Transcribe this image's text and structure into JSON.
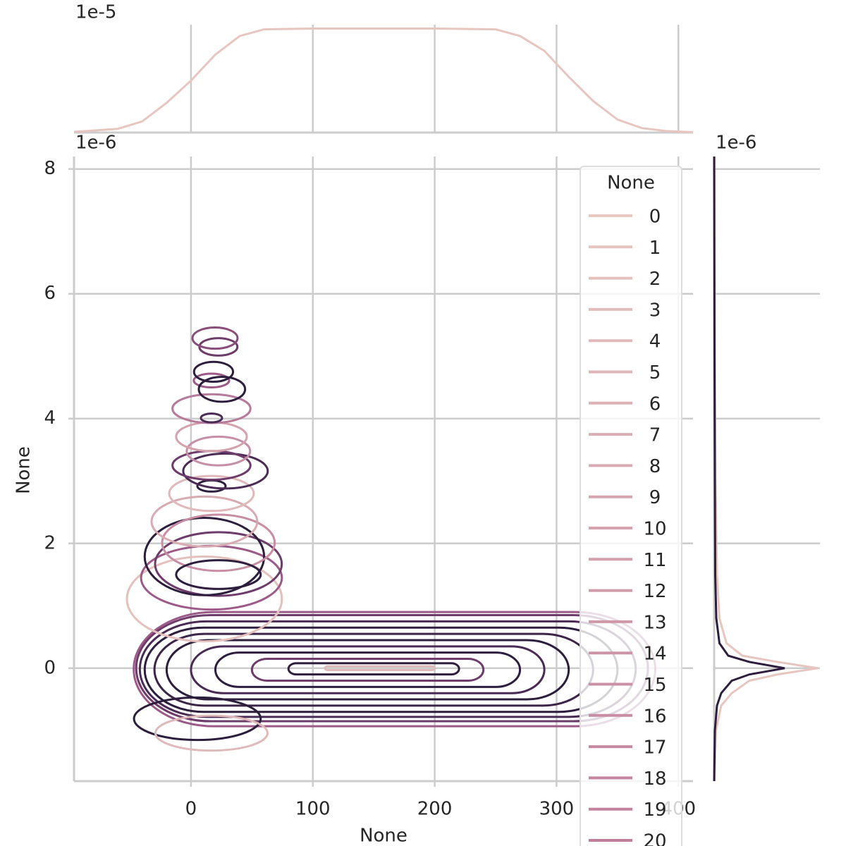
{
  "chart_data": {
    "type": "kde_joint",
    "xlabel": "None",
    "ylabel": "None",
    "xlim": [
      -96,
      412
    ],
    "xticks": [
      0,
      100,
      200,
      300,
      400
    ],
    "ylim": [
      -1.81,
      8.2
    ],
    "yticks": [
      0,
      2,
      4,
      6,
      8
    ],
    "y_offset": "1e-6",
    "grid": true,
    "legend": {
      "title": "None",
      "position": "upper right"
    },
    "series": [
      {
        "name": "0",
        "color": "#e8c8c1"
      },
      {
        "name": "1",
        "color": "#e6c4bf"
      },
      {
        "name": "2",
        "color": "#e4c1bd"
      },
      {
        "name": "3",
        "color": "#e2bdbb"
      },
      {
        "name": "4",
        "color": "#e0b9ba"
      },
      {
        "name": "5",
        "color": "#deb6b8"
      },
      {
        "name": "6",
        "color": "#dcb2b6"
      },
      {
        "name": "7",
        "color": "#daaeb4"
      },
      {
        "name": "8",
        "color": "#d8aab2"
      },
      {
        "name": "9",
        "color": "#d6a7b0"
      },
      {
        "name": "10",
        "color": "#d4a3ae"
      },
      {
        "name": "11",
        "color": "#d39fad"
      },
      {
        "name": "12",
        "color": "#d19cab"
      },
      {
        "name": "13",
        "color": "#cf98a9"
      },
      {
        "name": "14",
        "color": "#cd94a7"
      },
      {
        "name": "15",
        "color": "#cb90a5"
      },
      {
        "name": "16",
        "color": "#c98da3"
      },
      {
        "name": "17",
        "color": "#c789a1"
      },
      {
        "name": "18",
        "color": "#c585a0"
      },
      {
        "name": "19",
        "color": "#c3829e"
      },
      {
        "name": "20",
        "color": "#c17e9c"
      }
    ],
    "bands": [
      {
        "color": "#9c5a88",
        "x0": -47,
        "x1": 381,
        "y0": -0.93,
        "y1": 0.9
      },
      {
        "color": "#6e3c6b",
        "x0": -45,
        "x1": 375,
        "y0": -0.85,
        "y1": 0.85
      },
      {
        "color": "#4a2b55",
        "x0": -42,
        "x1": 365,
        "y0": -0.78,
        "y1": 0.75
      },
      {
        "color": "#2d1e3e",
        "x0": -38,
        "x1": 350,
        "y0": -0.7,
        "y1": 0.65
      },
      {
        "color": "#3d2449",
        "x0": -30,
        "x1": 330,
        "y0": -0.6,
        "y1": 0.55
      },
      {
        "color": "#2d1e3e",
        "x0": -20,
        "x1": 310,
        "y0": -0.5,
        "y1": 0.45
      },
      {
        "color": "#4a2b55",
        "x0": 0,
        "x1": 290,
        "y0": -0.4,
        "y1": 0.35
      },
      {
        "color": "#2d1e3e",
        "x0": 20,
        "x1": 270,
        "y0": -0.3,
        "y1": 0.25
      },
      {
        "color": "#6e3c6b",
        "x0": 50,
        "x1": 240,
        "y0": -0.2,
        "y1": 0.15
      },
      {
        "color": "#2d1e3e",
        "x0": 80,
        "x1": 220,
        "y0": -0.1,
        "y1": 0.08
      },
      {
        "color": "#e0b9ba",
        "x0": 110,
        "x1": 200,
        "y0": -0.03,
        "y1": 0.03
      }
    ],
    "ellipses": [
      {
        "color": "#e4c1bd",
        "cx": 11,
        "cy": 1.11,
        "rx": 63.6,
        "ry": 0.68
      },
      {
        "color": "#9c5a88",
        "cx": 16.8,
        "cy": 1.45,
        "rx": 57.8,
        "ry": 0.51
      },
      {
        "color": "#6e3c6b",
        "cx": 22.5,
        "cy": 1.67,
        "rx": 52,
        "ry": 0.51
      },
      {
        "color": "#2d1e3e",
        "cx": 11,
        "cy": 1.79,
        "rx": 49,
        "ry": 0.62
      },
      {
        "color": "#c98da3",
        "cx": 22.5,
        "cy": 2.01,
        "rx": 46.2,
        "ry": 0.45
      },
      {
        "color": "#2d1e3e",
        "cx": 22.5,
        "cy": 1.5,
        "rx": 34.7,
        "ry": 0.23
      },
      {
        "color": "#d8aab2",
        "cx": 11,
        "cy": 2.35,
        "rx": 43.4,
        "ry": 0.4
      },
      {
        "color": "#e0b9ba",
        "cx": 16.8,
        "cy": 2.8,
        "rx": 34.7,
        "ry": 0.28
      },
      {
        "color": "#2d1e3e",
        "cx": 16.8,
        "cy": 2.92,
        "rx": 11.6,
        "ry": 0.09
      },
      {
        "color": "#4a2b55",
        "cx": 28.3,
        "cy": 3.16,
        "rx": 34.7,
        "ry": 0.28
      },
      {
        "color": "#6e3c6b",
        "cx": 16.8,
        "cy": 3.25,
        "rx": 32,
        "ry": 0.23
      },
      {
        "color": "#c58fa8",
        "cx": 22.5,
        "cy": 3.48,
        "rx": 26,
        "ry": 0.23
      },
      {
        "color": "#d4a3ae",
        "cx": 16.8,
        "cy": 3.71,
        "rx": 29,
        "ry": 0.23
      },
      {
        "color": "#b67a9c",
        "cx": 16.8,
        "cy": 4.16,
        "rx": 32,
        "ry": 0.23
      },
      {
        "color": "#4a2b55",
        "cx": 16.8,
        "cy": 4.01,
        "rx": 8.7,
        "ry": 0.07
      },
      {
        "color": "#9c5a88",
        "cx": 16.8,
        "cy": 4.61,
        "rx": 14.5,
        "ry": 0.11
      },
      {
        "color": "#2d1e3e",
        "cx": 25.4,
        "cy": 4.47,
        "rx": 19,
        "ry": 0.2
      },
      {
        "color": "#2d1e3e",
        "cx": 18.5,
        "cy": 4.75,
        "rx": 16,
        "ry": 0.16
      },
      {
        "color": "#6e3c6b",
        "cx": 22.5,
        "cy": 5.15,
        "rx": 15.6,
        "ry": 0.14
      },
      {
        "color": "#8a4e7b",
        "cx": 19.7,
        "cy": 5.29,
        "rx": 18.5,
        "ry": 0.17
      },
      {
        "color": "#2d1e3e",
        "cx": 5.2,
        "cy": -0.81,
        "rx": 52,
        "ry": 0.34
      },
      {
        "color": "#e0b9ba",
        "cx": 16.8,
        "cy": -1.04,
        "rx": 46,
        "ry": 0.28
      }
    ],
    "marginal_x": {
      "y_offset": "1e-5",
      "ylim": [
        0,
        3
      ],
      "x": [
        -96,
        -60,
        -40,
        -20,
        0,
        20,
        40,
        60,
        100,
        200,
        250,
        270,
        290,
        310,
        330,
        350,
        370,
        390,
        412
      ],
      "series": [
        {
          "color": "#e8c6c0",
          "values": [
            0.02,
            0.1,
            0.3,
            0.8,
            1.4,
            2.1,
            2.6,
            2.78,
            2.8,
            2.8,
            2.78,
            2.6,
            2.2,
            1.5,
            0.85,
            0.35,
            0.12,
            0.04,
            0.01
          ]
        }
      ]
    },
    "marginal_y": {
      "x_offset": "1e-6",
      "xlim": [
        0,
        3
      ],
      "y": [
        -1.81,
        -1.0,
        -0.6,
        -0.4,
        -0.2,
        -0.1,
        0,
        0.1,
        0.2,
        0.4,
        0.8,
        1.5,
        3,
        5,
        8.2
      ],
      "series": [
        {
          "color": "#e8c6c0",
          "values": [
            0.01,
            0.05,
            0.2,
            0.5,
            1.0,
            1.8,
            2.94,
            1.8,
            0.8,
            0.35,
            0.15,
            0.08,
            0.04,
            0.02,
            0.01
          ]
        },
        {
          "color": "#2d1e3e",
          "values": [
            0.0,
            0.02,
            0.08,
            0.2,
            0.5,
            1.0,
            2.0,
            1.0,
            0.4,
            0.15,
            0.06,
            0.03,
            0.02,
            0.01,
            0.0
          ]
        }
      ]
    }
  }
}
